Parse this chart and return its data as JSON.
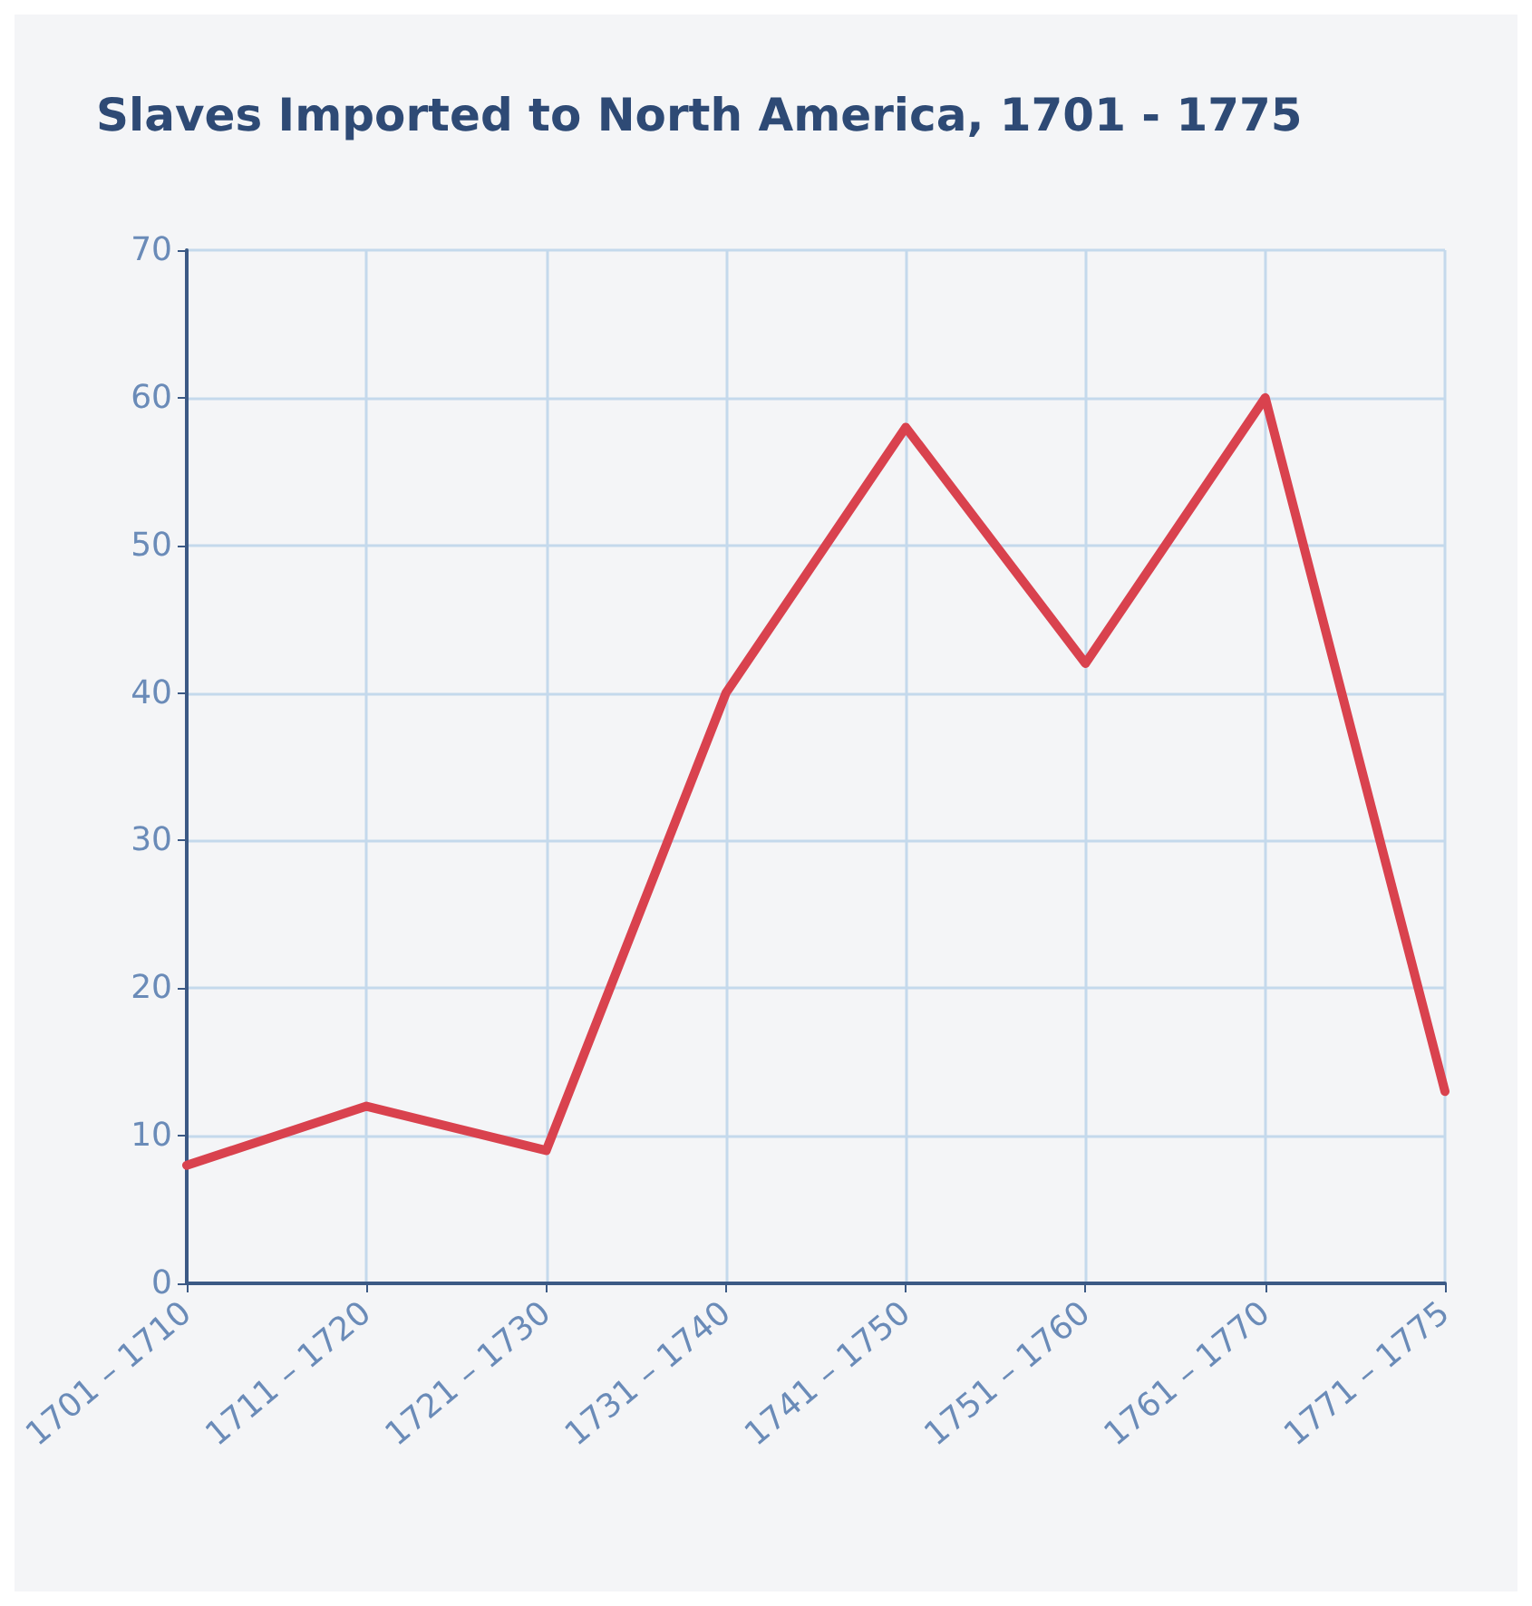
{
  "chart_data": {
    "type": "line",
    "title": "Slaves Imported to North America, 1701 - 1775",
    "categories": [
      "1701 – 1710",
      "1711 – 1720",
      "1721 – 1730",
      "1731 – 1740",
      "1741 – 1750",
      "1751 – 1760",
      "1761 – 1770",
      "1771 – 1775"
    ],
    "series": [
      {
        "color": "#d9424e",
        "values": [
          8,
          12,
          9,
          40,
          58,
          42,
          60,
          13
        ]
      }
    ],
    "ylim": [
      0,
      70
    ],
    "yticks": [
      0,
      10,
      20,
      30,
      40,
      50,
      60,
      70
    ],
    "grid": true,
    "marker": "none",
    "line_style": "solid"
  }
}
